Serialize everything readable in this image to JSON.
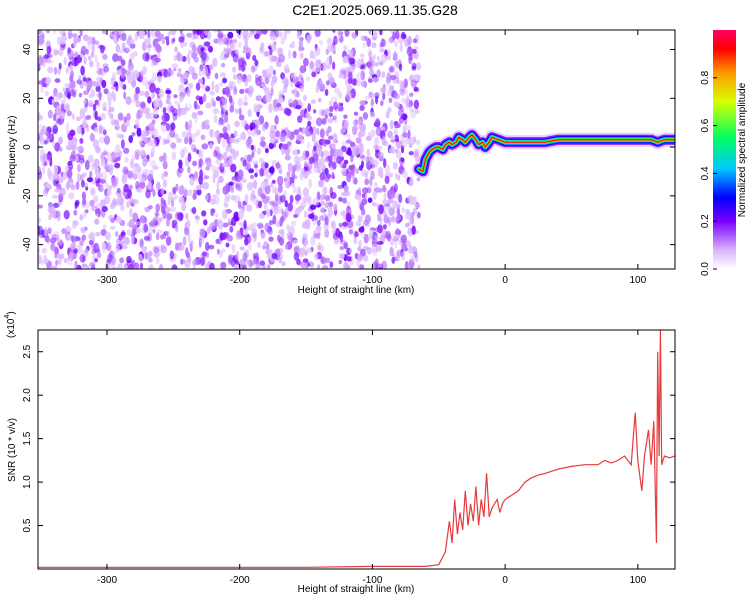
{
  "title": "C2E1.2025.069.11.35.G28",
  "chart_data": [
    {
      "type": "heatmap",
      "title": "C2E1.2025.069.11.35.G28",
      "xlabel": "Height of straight line (km)",
      "ylabel": "Frequency (Hz)",
      "xlim": [
        -352,
        128
      ],
      "ylim": [
        -50,
        48
      ],
      "x_ticks": [
        -300,
        -200,
        -100,
        0,
        100
      ],
      "y_ticks": [
        -40,
        -20,
        0,
        20,
        40
      ],
      "noise_region_x": [
        -352,
        -65
      ],
      "signal_start_x": -65,
      "signal_trace": {
        "x": [
          -65,
          -62,
          -60,
          -57,
          -55,
          -52,
          -50,
          -47,
          -45,
          -42,
          -40,
          -37,
          -35,
          -32,
          -30,
          -27,
          -25,
          -22,
          -20,
          -17,
          -15,
          -12,
          -10,
          -5,
          0,
          10,
          20,
          30,
          40,
          50,
          60,
          70,
          80,
          90,
          100,
          110,
          115,
          120,
          128
        ],
        "y": [
          -9,
          -10,
          -5,
          -2,
          -1,
          0,
          0,
          -1,
          1,
          2,
          1,
          2,
          4,
          3,
          2,
          4,
          5,
          3,
          1,
          2,
          0,
          2,
          4,
          3,
          2,
          2,
          2,
          2,
          3,
          3,
          3,
          3,
          3,
          3,
          3,
          3,
          2,
          3,
          3
        ]
      },
      "colorbar": {
        "label": "Normalized spectral amplitude",
        "ticks": [
          "0.0",
          "0.2",
          "0.4",
          "0.6",
          "0.8"
        ],
        "range": [
          0,
          1
        ]
      }
    },
    {
      "type": "line",
      "xlabel": "Height of straight line (km)",
      "ylabel": "SNR (10 * v/v)",
      "y_multiplier_base": "(x10",
      "y_multiplier_exp": "4",
      "y_multiplier_close": ")",
      "xlim": [
        -352,
        128
      ],
      "ylim": [
        0,
        2.75
      ],
      "x_ticks": [
        -300,
        -200,
        -100,
        0,
        100
      ],
      "y_ticks": [
        "0.5",
        "1.0",
        "1.5",
        "2.0",
        "2.5"
      ],
      "series": [
        {
          "color": "#e83a3a",
          "x": [
            -352,
            -300,
            -250,
            -200,
            -150,
            -100,
            -60,
            -50,
            -45,
            -42,
            -40,
            -38,
            -36,
            -34,
            -32,
            -30,
            -28,
            -26,
            -24,
            -22,
            -20,
            -18,
            -16,
            -14,
            -12,
            -10,
            -8,
            -6,
            -4,
            -2,
            0,
            5,
            10,
            15,
            20,
            25,
            30,
            40,
            50,
            60,
            70,
            75,
            80,
            85,
            90,
            95,
            98,
            100,
            103,
            105,
            108,
            110,
            112,
            114,
            115,
            116,
            117,
            118,
            120,
            124,
            128
          ],
          "y": [
            0.02,
            0.02,
            0.02,
            0.02,
            0.02,
            0.03,
            0.03,
            0.05,
            0.2,
            0.55,
            0.3,
            0.8,
            0.4,
            0.65,
            0.45,
            0.9,
            0.5,
            0.75,
            0.55,
            0.95,
            0.5,
            0.8,
            0.6,
            1.1,
            0.6,
            0.7,
            0.75,
            0.8,
            0.65,
            0.75,
            0.8,
            0.85,
            0.9,
            1.0,
            1.05,
            1.08,
            1.1,
            1.15,
            1.18,
            1.2,
            1.2,
            1.25,
            1.22,
            1.25,
            1.3,
            1.2,
            1.8,
            1.25,
            0.9,
            1.3,
            1.6,
            1.2,
            1.7,
            0.3,
            2.5,
            1.3,
            2.75,
            1.2,
            1.3,
            1.28,
            1.3
          ]
        }
      ]
    }
  ]
}
